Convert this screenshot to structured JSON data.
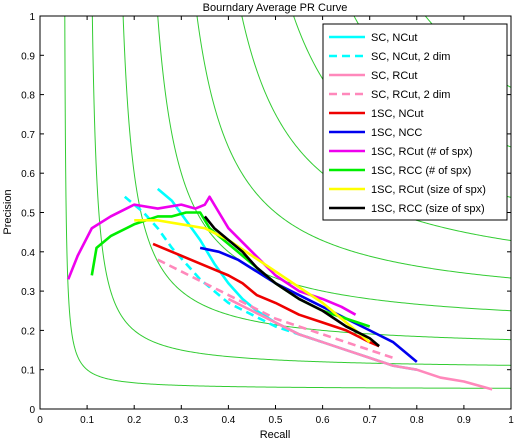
{
  "chart_data": {
    "type": "line",
    "title": "Bourndary Average PR Curve",
    "xlabel": "Recall",
    "ylabel": "Precision",
    "xlim": [
      0,
      1
    ],
    "ylim": [
      0,
      1
    ],
    "grid": false,
    "legend_position": "top-right",
    "xticks": [
      "0",
      "0.1",
      "0.2",
      "0.3",
      "0.4",
      "0.5",
      "0.6",
      "0.7",
      "0.8",
      "0.9",
      "1"
    ],
    "yticks": [
      "0",
      "0.1",
      "0.2",
      "0.3",
      "0.4",
      "0.5",
      "0.6",
      "0.7",
      "0.8",
      "0.9",
      "1"
    ],
    "iso_f_lines": {
      "color": "#33cc33",
      "values": [
        0.1,
        0.2,
        0.3,
        0.4,
        0.5,
        0.6,
        0.7,
        0.8,
        0.9
      ]
    },
    "series": [
      {
        "name": "SC, NCut",
        "color": "#00ffff",
        "dash": "solid",
        "x": [
          0.25,
          0.28,
          0.31,
          0.34,
          0.37,
          0.4,
          0.43,
          0.46,
          0.5,
          0.55,
          0.6,
          0.65,
          0.7,
          0.75,
          0.8
        ],
        "y": [
          0.56,
          0.53,
          0.48,
          0.43,
          0.37,
          0.32,
          0.28,
          0.25,
          0.22,
          0.19,
          0.17,
          0.15,
          0.13,
          0.11,
          0.1
        ]
      },
      {
        "name": "SC, NCut, 2 dim",
        "color": "#00ffff",
        "dash": "dashed",
        "x": [
          0.18,
          0.22,
          0.25,
          0.28,
          0.31,
          0.34,
          0.37,
          0.4,
          0.45,
          0.5,
          0.55,
          0.6
        ],
        "y": [
          0.54,
          0.5,
          0.46,
          0.41,
          0.37,
          0.33,
          0.3,
          0.27,
          0.24,
          0.21,
          0.19,
          0.17
        ]
      },
      {
        "name": "SC, RCut",
        "color": "#ff88bb",
        "dash": "solid",
        "x": [
          0.4,
          0.45,
          0.5,
          0.55,
          0.6,
          0.65,
          0.7,
          0.75,
          0.8,
          0.85,
          0.9,
          0.96
        ],
        "y": [
          0.28,
          0.25,
          0.22,
          0.19,
          0.17,
          0.15,
          0.13,
          0.11,
          0.1,
          0.08,
          0.07,
          0.05
        ]
      },
      {
        "name": "SC, RCut, 2 dim",
        "color": "#ff88bb",
        "dash": "dashed",
        "x": [
          0.25,
          0.3,
          0.35,
          0.4,
          0.45,
          0.5,
          0.55,
          0.6,
          0.65,
          0.7,
          0.75
        ],
        "y": [
          0.38,
          0.35,
          0.32,
          0.29,
          0.26,
          0.23,
          0.21,
          0.19,
          0.17,
          0.15,
          0.13
        ]
      },
      {
        "name": "1SC, NCut",
        "color": "#ee0000",
        "dash": "solid",
        "x": [
          0.24,
          0.28,
          0.32,
          0.36,
          0.4,
          0.43,
          0.46,
          0.5,
          0.55,
          0.6,
          0.65,
          0.7,
          0.72
        ],
        "y": [
          0.42,
          0.4,
          0.38,
          0.36,
          0.34,
          0.32,
          0.29,
          0.27,
          0.24,
          0.22,
          0.2,
          0.17,
          0.16
        ]
      },
      {
        "name": "1SC, NCC",
        "color": "#0000ee",
        "dash": "solid",
        "x": [
          0.34,
          0.38,
          0.42,
          0.46,
          0.5,
          0.55,
          0.6,
          0.65,
          0.7,
          0.75,
          0.78,
          0.8
        ],
        "y": [
          0.41,
          0.4,
          0.38,
          0.35,
          0.32,
          0.29,
          0.26,
          0.23,
          0.2,
          0.17,
          0.14,
          0.12
        ]
      },
      {
        "name": "1SC, RCut (# of spx)",
        "color": "#ee00ee",
        "dash": "solid",
        "x": [
          0.06,
          0.08,
          0.11,
          0.15,
          0.2,
          0.25,
          0.3,
          0.33,
          0.35,
          0.36,
          0.38,
          0.4,
          0.45,
          0.5,
          0.55,
          0.6,
          0.64,
          0.67
        ],
        "y": [
          0.33,
          0.39,
          0.46,
          0.49,
          0.52,
          0.51,
          0.52,
          0.51,
          0.52,
          0.54,
          0.5,
          0.46,
          0.4,
          0.34,
          0.3,
          0.28,
          0.26,
          0.24
        ]
      },
      {
        "name": "1SC, RCC (# of spx)",
        "color": "#00ee00",
        "dash": "solid",
        "x": [
          0.11,
          0.12,
          0.15,
          0.2,
          0.25,
          0.28,
          0.31,
          0.34,
          0.36,
          0.38,
          0.42,
          0.46,
          0.5,
          0.55,
          0.6,
          0.65,
          0.7
        ],
        "y": [
          0.34,
          0.41,
          0.44,
          0.47,
          0.49,
          0.49,
          0.5,
          0.5,
          0.46,
          0.44,
          0.4,
          0.36,
          0.32,
          0.28,
          0.25,
          0.23,
          0.21
        ]
      },
      {
        "name": "1SC, RCut (size of spx)",
        "color": "#ffff00",
        "dash": "solid",
        "x": [
          0.2,
          0.25,
          0.3,
          0.35,
          0.4,
          0.45,
          0.5,
          0.55,
          0.6,
          0.65,
          0.7
        ],
        "y": [
          0.48,
          0.48,
          0.47,
          0.46,
          0.43,
          0.39,
          0.35,
          0.31,
          0.27,
          0.22,
          0.17
        ]
      },
      {
        "name": "1SC, RCC (size of spx)",
        "color": "#000000",
        "dash": "solid",
        "x": [
          0.35,
          0.37,
          0.4,
          0.43,
          0.46,
          0.5,
          0.55,
          0.6,
          0.65,
          0.7,
          0.72
        ],
        "y": [
          0.49,
          0.46,
          0.43,
          0.4,
          0.36,
          0.32,
          0.28,
          0.25,
          0.21,
          0.18,
          0.16
        ]
      }
    ]
  }
}
